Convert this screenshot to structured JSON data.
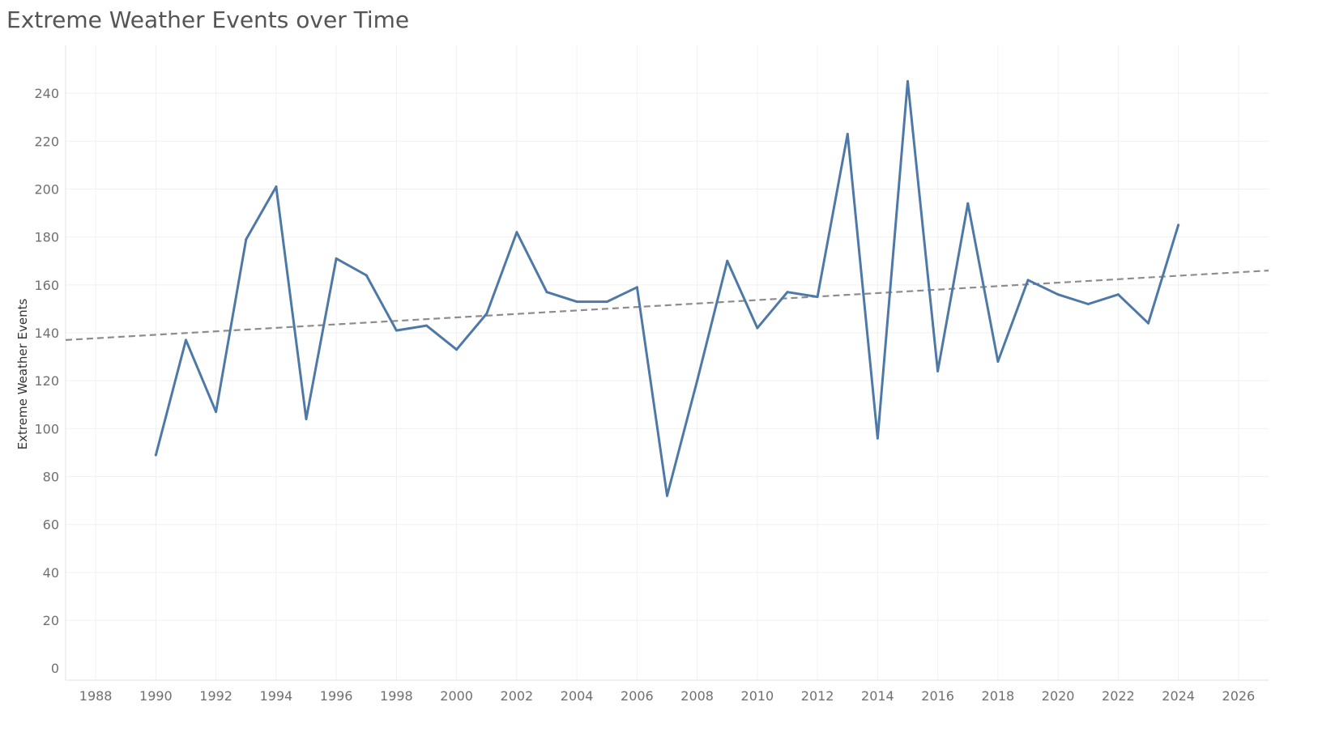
{
  "chart_data": {
    "type": "line",
    "title": "Extreme Weather Events over Time",
    "xlabel": "",
    "ylabel": "Extreme Weather Events",
    "xlim": [
      1987,
      2027
    ],
    "ylim": [
      -5,
      260
    ],
    "x_ticks": [
      1988,
      1990,
      1992,
      1994,
      1996,
      1998,
      2000,
      2002,
      2004,
      2006,
      2008,
      2010,
      2012,
      2014,
      2016,
      2018,
      2020,
      2022,
      2024,
      2026
    ],
    "y_ticks": [
      0,
      20,
      40,
      60,
      80,
      100,
      120,
      140,
      160,
      180,
      200,
      220,
      240
    ],
    "grid": true,
    "series": [
      {
        "color": "#4e79a7",
        "x": [
          1990,
          1991,
          1992,
          1993,
          1994,
          1995,
          1996,
          1997,
          1998,
          1999,
          2000,
          2001,
          2002,
          2003,
          2004,
          2005,
          2006,
          2007,
          2008,
          2009,
          2010,
          2011,
          2012,
          2013,
          2014,
          2015,
          2016,
          2017,
          2018,
          2019,
          2020,
          2021,
          2022,
          2023,
          2024
        ],
        "values": [
          89,
          137,
          107,
          179,
          201,
          104,
          171,
          164,
          141,
          143,
          133,
          148,
          182,
          157,
          153,
          153,
          159,
          72,
          120,
          170,
          142,
          157,
          155,
          223,
          96,
          245,
          124,
          194,
          128,
          162,
          156,
          152,
          156,
          144,
          185
        ]
      }
    ],
    "trend_line": {
      "style": "dashed",
      "color": "#8c8c8c",
      "x": [
        1987,
        2027
      ],
      "values": [
        137,
        166
      ]
    }
  }
}
